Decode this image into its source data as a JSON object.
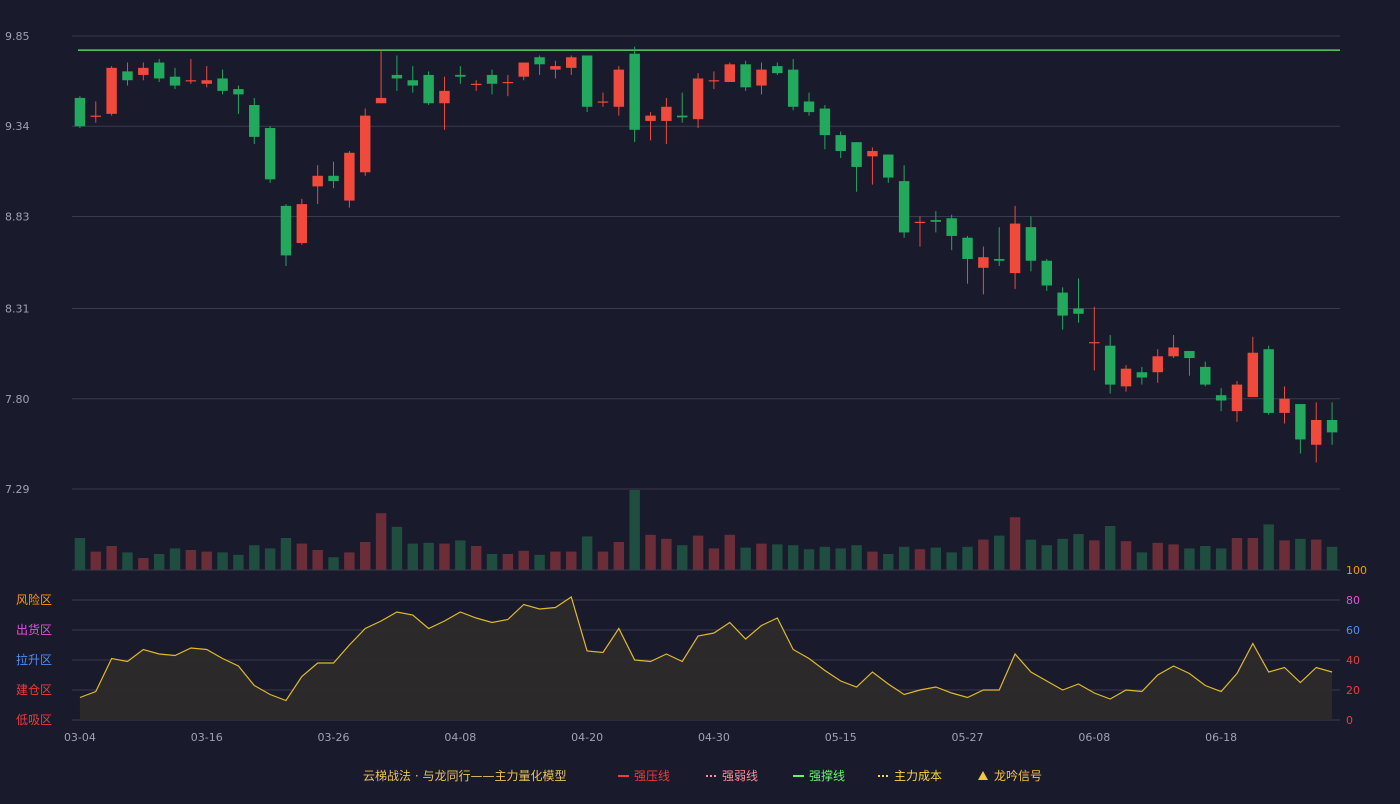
{
  "chart_data": [
    {
      "type": "candlestick",
      "ylim": [
        7.29,
        9.85
      ],
      "y_ticks": [
        "9.85",
        "9.34",
        "8.83",
        "8.31",
        "7.80",
        "7.29"
      ],
      "x_ticks": [
        {
          "index": 0,
          "label": "03-04"
        },
        {
          "index": 8,
          "label": "03-16"
        },
        {
          "index": 16,
          "label": "03-26"
        },
        {
          "index": 24,
          "label": "04-08"
        },
        {
          "index": 32,
          "label": "04-20"
        },
        {
          "index": 40,
          "label": "04-30"
        },
        {
          "index": 48,
          "label": "05-15"
        },
        {
          "index": 56,
          "label": "05-27"
        },
        {
          "index": 64,
          "label": "06-08"
        },
        {
          "index": 72,
          "label": "06-18"
        }
      ],
      "resistance_level": 9.77,
      "candles": [
        [
          9.5,
          9.34,
          9.51,
          9.33
        ],
        [
          9.4,
          9.4,
          9.48,
          9.36
        ],
        [
          9.41,
          9.67,
          9.68,
          9.4
        ],
        [
          9.65,
          9.6,
          9.7,
          9.57
        ],
        [
          9.63,
          9.67,
          9.7,
          9.6
        ],
        [
          9.7,
          9.61,
          9.72,
          9.59
        ],
        [
          9.62,
          9.57,
          9.67,
          9.55
        ],
        [
          9.6,
          9.6,
          9.72,
          9.58
        ],
        [
          9.58,
          9.6,
          9.68,
          9.56
        ],
        [
          9.61,
          9.54,
          9.66,
          9.52
        ],
        [
          9.55,
          9.52,
          9.57,
          9.41
        ],
        [
          9.46,
          9.28,
          9.5,
          9.24
        ],
        [
          9.33,
          9.04,
          9.34,
          9.02
        ],
        [
          8.89,
          8.61,
          8.9,
          8.55
        ],
        [
          8.68,
          8.9,
          8.93,
          8.67
        ],
        [
          9.0,
          9.06,
          9.12,
          8.9
        ],
        [
          9.06,
          9.03,
          9.14,
          8.99
        ],
        [
          8.92,
          9.19,
          9.2,
          8.88
        ],
        [
          9.08,
          9.4,
          9.44,
          9.06
        ],
        [
          9.47,
          9.5,
          9.77,
          9.47
        ],
        [
          9.63,
          9.61,
          9.74,
          9.54
        ],
        [
          9.6,
          9.57,
          9.68,
          9.53
        ],
        [
          9.63,
          9.47,
          9.65,
          9.46
        ],
        [
          9.47,
          9.54,
          9.62,
          9.32
        ],
        [
          9.63,
          9.62,
          9.68,
          9.58
        ],
        [
          9.58,
          9.58,
          9.6,
          9.54
        ],
        [
          9.63,
          9.58,
          9.66,
          9.52
        ],
        [
          9.59,
          9.59,
          9.63,
          9.51
        ],
        [
          9.62,
          9.7,
          9.7,
          9.6
        ],
        [
          9.73,
          9.69,
          9.74,
          9.63
        ],
        [
          9.66,
          9.68,
          9.71,
          9.61
        ],
        [
          9.67,
          9.73,
          9.74,
          9.63
        ],
        [
          9.74,
          9.45,
          9.74,
          9.42
        ],
        [
          9.48,
          9.48,
          9.53,
          9.45
        ],
        [
          9.45,
          9.66,
          9.68,
          9.4
        ],
        [
          9.75,
          9.32,
          9.79,
          9.25
        ],
        [
          9.37,
          9.4,
          9.42,
          9.26
        ],
        [
          9.37,
          9.45,
          9.5,
          9.24
        ],
        [
          9.4,
          9.39,
          9.53,
          9.36
        ],
        [
          9.38,
          9.61,
          9.64,
          9.33
        ],
        [
          9.6,
          9.6,
          9.65,
          9.55
        ],
        [
          9.59,
          9.69,
          9.7,
          9.59
        ],
        [
          9.69,
          9.56,
          9.71,
          9.54
        ],
        [
          9.57,
          9.66,
          9.7,
          9.52
        ],
        [
          9.68,
          9.64,
          9.7,
          9.63
        ],
        [
          9.66,
          9.45,
          9.72,
          9.43
        ],
        [
          9.48,
          9.42,
          9.53,
          9.4
        ],
        [
          9.44,
          9.29,
          9.46,
          9.21
        ],
        [
          9.29,
          9.2,
          9.31,
          9.16
        ],
        [
          9.25,
          9.11,
          9.25,
          8.97
        ],
        [
          9.17,
          9.2,
          9.22,
          9.01
        ],
        [
          9.18,
          9.05,
          9.18,
          9.02
        ],
        [
          9.03,
          8.74,
          9.12,
          8.71
        ],
        [
          8.8,
          8.8,
          8.83,
          8.66
        ],
        [
          8.81,
          8.8,
          8.86,
          8.74
        ],
        [
          8.82,
          8.72,
          8.84,
          8.64
        ],
        [
          8.71,
          8.59,
          8.72,
          8.45
        ],
        [
          8.54,
          8.6,
          8.66,
          8.39
        ],
        [
          8.59,
          8.58,
          8.77,
          8.55
        ],
        [
          8.51,
          8.79,
          8.89,
          8.42
        ],
        [
          8.77,
          8.58,
          8.83,
          8.52
        ],
        [
          8.58,
          8.44,
          8.59,
          8.41
        ],
        [
          8.4,
          8.27,
          8.43,
          8.19
        ],
        [
          8.31,
          8.28,
          8.48,
          8.23
        ],
        [
          8.12,
          8.12,
          8.32,
          7.96
        ],
        [
          8.1,
          7.88,
          8.16,
          7.83
        ],
        [
          7.87,
          7.97,
          7.99,
          7.84
        ],
        [
          7.95,
          7.92,
          7.98,
          7.88
        ],
        [
          7.95,
          8.04,
          8.08,
          7.89
        ],
        [
          8.04,
          8.09,
          8.16,
          8.03
        ],
        [
          8.07,
          8.03,
          8.07,
          7.93
        ],
        [
          7.98,
          7.88,
          8.01,
          7.87
        ],
        [
          7.82,
          7.79,
          7.86,
          7.73
        ],
        [
          7.73,
          7.88,
          7.9,
          7.67
        ],
        [
          7.81,
          8.06,
          8.15,
          7.81
        ],
        [
          8.08,
          7.72,
          8.1,
          7.71
        ],
        [
          7.72,
          7.8,
          7.87,
          7.66
        ],
        [
          7.77,
          7.57,
          7.77,
          7.49
        ],
        [
          7.54,
          7.68,
          7.78,
          7.44
        ],
        [
          7.68,
          7.61,
          7.78,
          7.54
        ]
      ],
      "volumes": [
        0.4,
        0.23,
        0.3,
        0.22,
        0.15,
        0.2,
        0.27,
        0.25,
        0.23,
        0.22,
        0.19,
        0.31,
        0.27,
        0.4,
        0.33,
        0.25,
        0.16,
        0.22,
        0.35,
        0.71,
        0.54,
        0.33,
        0.34,
        0.33,
        0.37,
        0.3,
        0.2,
        0.2,
        0.24,
        0.19,
        0.23,
        0.23,
        0.42,
        0.23,
        0.35,
        1.0,
        0.44,
        0.39,
        0.31,
        0.43,
        0.27,
        0.44,
        0.28,
        0.33,
        0.32,
        0.31,
        0.26,
        0.29,
        0.27,
        0.31,
        0.23,
        0.2,
        0.29,
        0.26,
        0.28,
        0.22,
        0.29,
        0.38,
        0.43,
        0.66,
        0.38,
        0.31,
        0.39,
        0.45,
        0.37,
        0.55,
        0.36,
        0.22,
        0.34,
        0.32,
        0.27,
        0.3,
        0.27,
        0.4,
        0.4,
        0.57,
        0.37,
        0.39,
        0.38,
        0.29
      ]
    },
    {
      "type": "area",
      "ylim": [
        0,
        100
      ],
      "y_ticks": [
        0,
        20,
        40,
        60,
        80,
        100
      ],
      "y_tick_colors": [
        "#ee3b3b",
        "#ee3b3b",
        "#ee3b3b",
        "#4f8ef7",
        "#df53d9",
        "#ff9900"
      ],
      "zones": [
        {
          "label": "风险区",
          "color": "#ff9900"
        },
        {
          "label": "出货区",
          "color": "#df53d9"
        },
        {
          "label": "拉升区",
          "color": "#4f8ef7"
        },
        {
          "label": "建仓区",
          "color": "#ee3b3b"
        },
        {
          "label": "低吸区",
          "color": "#ee3b3b"
        }
      ],
      "values": [
        15,
        19,
        41,
        39,
        47,
        44,
        43,
        48,
        47,
        41,
        36,
        23,
        17,
        13,
        29,
        38,
        38,
        50,
        61,
        66,
        72,
        70,
        61,
        66,
        72,
        68,
        65,
        67,
        77,
        74,
        75,
        82,
        46,
        45,
        61,
        40,
        39,
        44,
        39,
        56,
        58,
        65,
        54,
        63,
        68,
        47,
        41,
        33,
        26,
        22,
        32,
        24,
        17,
        20,
        22,
        18,
        15,
        20,
        20,
        44,
        32,
        26,
        20,
        24,
        18,
        14,
        20,
        19,
        30,
        36,
        31,
        23,
        19,
        31,
        51,
        32,
        35,
        25,
        35,
        32
      ]
    }
  ],
  "legend": {
    "title": "云梯战法 · 与龙同行——主力量化模型",
    "items": [
      {
        "label": "强压线",
        "color": "#ee3b3b",
        "style": "solid"
      },
      {
        "label": "强弱线",
        "color": "#ff8c99",
        "style": "dotted"
      },
      {
        "label": "强撑线",
        "color": "#68f06f",
        "style": "solid"
      },
      {
        "label": "主力成本",
        "color": "#f5d742",
        "style": "dotted"
      },
      {
        "label": "龙吟信号",
        "color": "#f5c542",
        "style": "triangle"
      }
    ]
  },
  "colors": {
    "up": "#ef4a3c",
    "down": "#22a95d",
    "volume_up": "#6b2d37",
    "volume_down": "#1f4d3f",
    "indicator_line": "#e0b92a",
    "indicator_fill": "#2e2b2a",
    "support_line": "#68f06f",
    "grid": "#3a3b4d",
    "axis_text": "#9ea1b2"
  }
}
